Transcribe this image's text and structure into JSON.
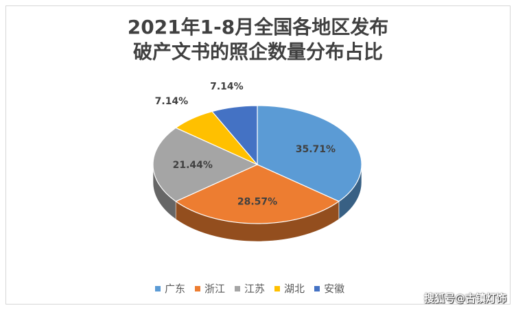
{
  "chart_data": {
    "type": "pie",
    "title_lines": [
      "2021年1-8月全国各地区发布",
      "破产文书的照企数量分布占比"
    ],
    "categories": [
      "广东",
      "浙江",
      "江苏",
      "湖北",
      "安徽"
    ],
    "values": [
      35.71,
      28.57,
      21.44,
      7.14,
      7.14
    ],
    "labels": [
      "35.71%",
      "28.57%",
      "21.44%",
      "7.14%",
      "7.14%"
    ],
    "colors": [
      "#5b9bd5",
      "#ed7d31",
      "#a5a5a5",
      "#ffc000",
      "#4472c4"
    ],
    "style": "3d",
    "legend_position": "bottom"
  },
  "watermark": "搜狐号@古镇灯饰"
}
